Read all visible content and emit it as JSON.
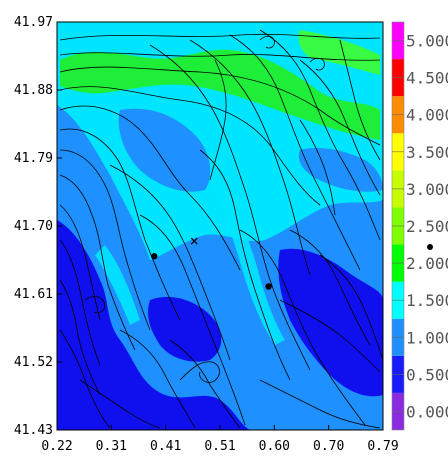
{
  "chart_data": {
    "type": "heatmap",
    "title": "",
    "xlabel": "",
    "ylabel": "",
    "x_ticks": [
      "0.22",
      "0.31",
      "0.41",
      "0.51",
      "0.60",
      "0.70",
      "0.79"
    ],
    "y_ticks": [
      "41.97",
      "41.88",
      "41.79",
      "41.70",
      "41.61",
      "41.52",
      "41.43"
    ],
    "xlim": [
      0.22,
      0.79
    ],
    "ylim": [
      41.43,
      41.97
    ],
    "colorbar": {
      "ticks": [
        "0.000",
        "0.500",
        "1.000",
        "1.500",
        "2.000",
        "2.500",
        "3.000",
        "3.500",
        "4.000",
        "4.500",
        "5.000"
      ],
      "range": [
        -0.25,
        5.25
      ],
      "bands": [
        {
          "from": -0.25,
          "to": 0.25,
          "color": "#8a2be2"
        },
        {
          "from": 0.25,
          "to": 0.75,
          "color": "#1a1aff"
        },
        {
          "from": 0.75,
          "to": 1.25,
          "color": "#1e90ff"
        },
        {
          "from": 1.25,
          "to": 1.75,
          "color": "#00ffff"
        },
        {
          "from": 1.75,
          "to": 2.25,
          "color": "#00ff00"
        },
        {
          "from": 2.25,
          "to": 2.75,
          "color": "#7fff00"
        },
        {
          "from": 2.75,
          "to": 3.25,
          "color": "#c8ff00"
        },
        {
          "from": 3.25,
          "to": 3.75,
          "color": "#ffff00"
        },
        {
          "from": 3.75,
          "to": 4.25,
          "color": "#ff8c00"
        },
        {
          "from": 4.25,
          "to": 4.75,
          "color": "#ff0000"
        },
        {
          "from": 4.75,
          "to": 5.25,
          "color": "#ff00ff"
        }
      ]
    },
    "markers": [
      {
        "x": 0.39,
        "y": 41.66,
        "symbol": "dot"
      },
      {
        "x": 0.59,
        "y": 41.62,
        "symbol": "dot"
      },
      {
        "x": 0.46,
        "y": 41.68,
        "symbol": "x"
      }
    ],
    "grid": false,
    "legend": "colorbar-right"
  }
}
